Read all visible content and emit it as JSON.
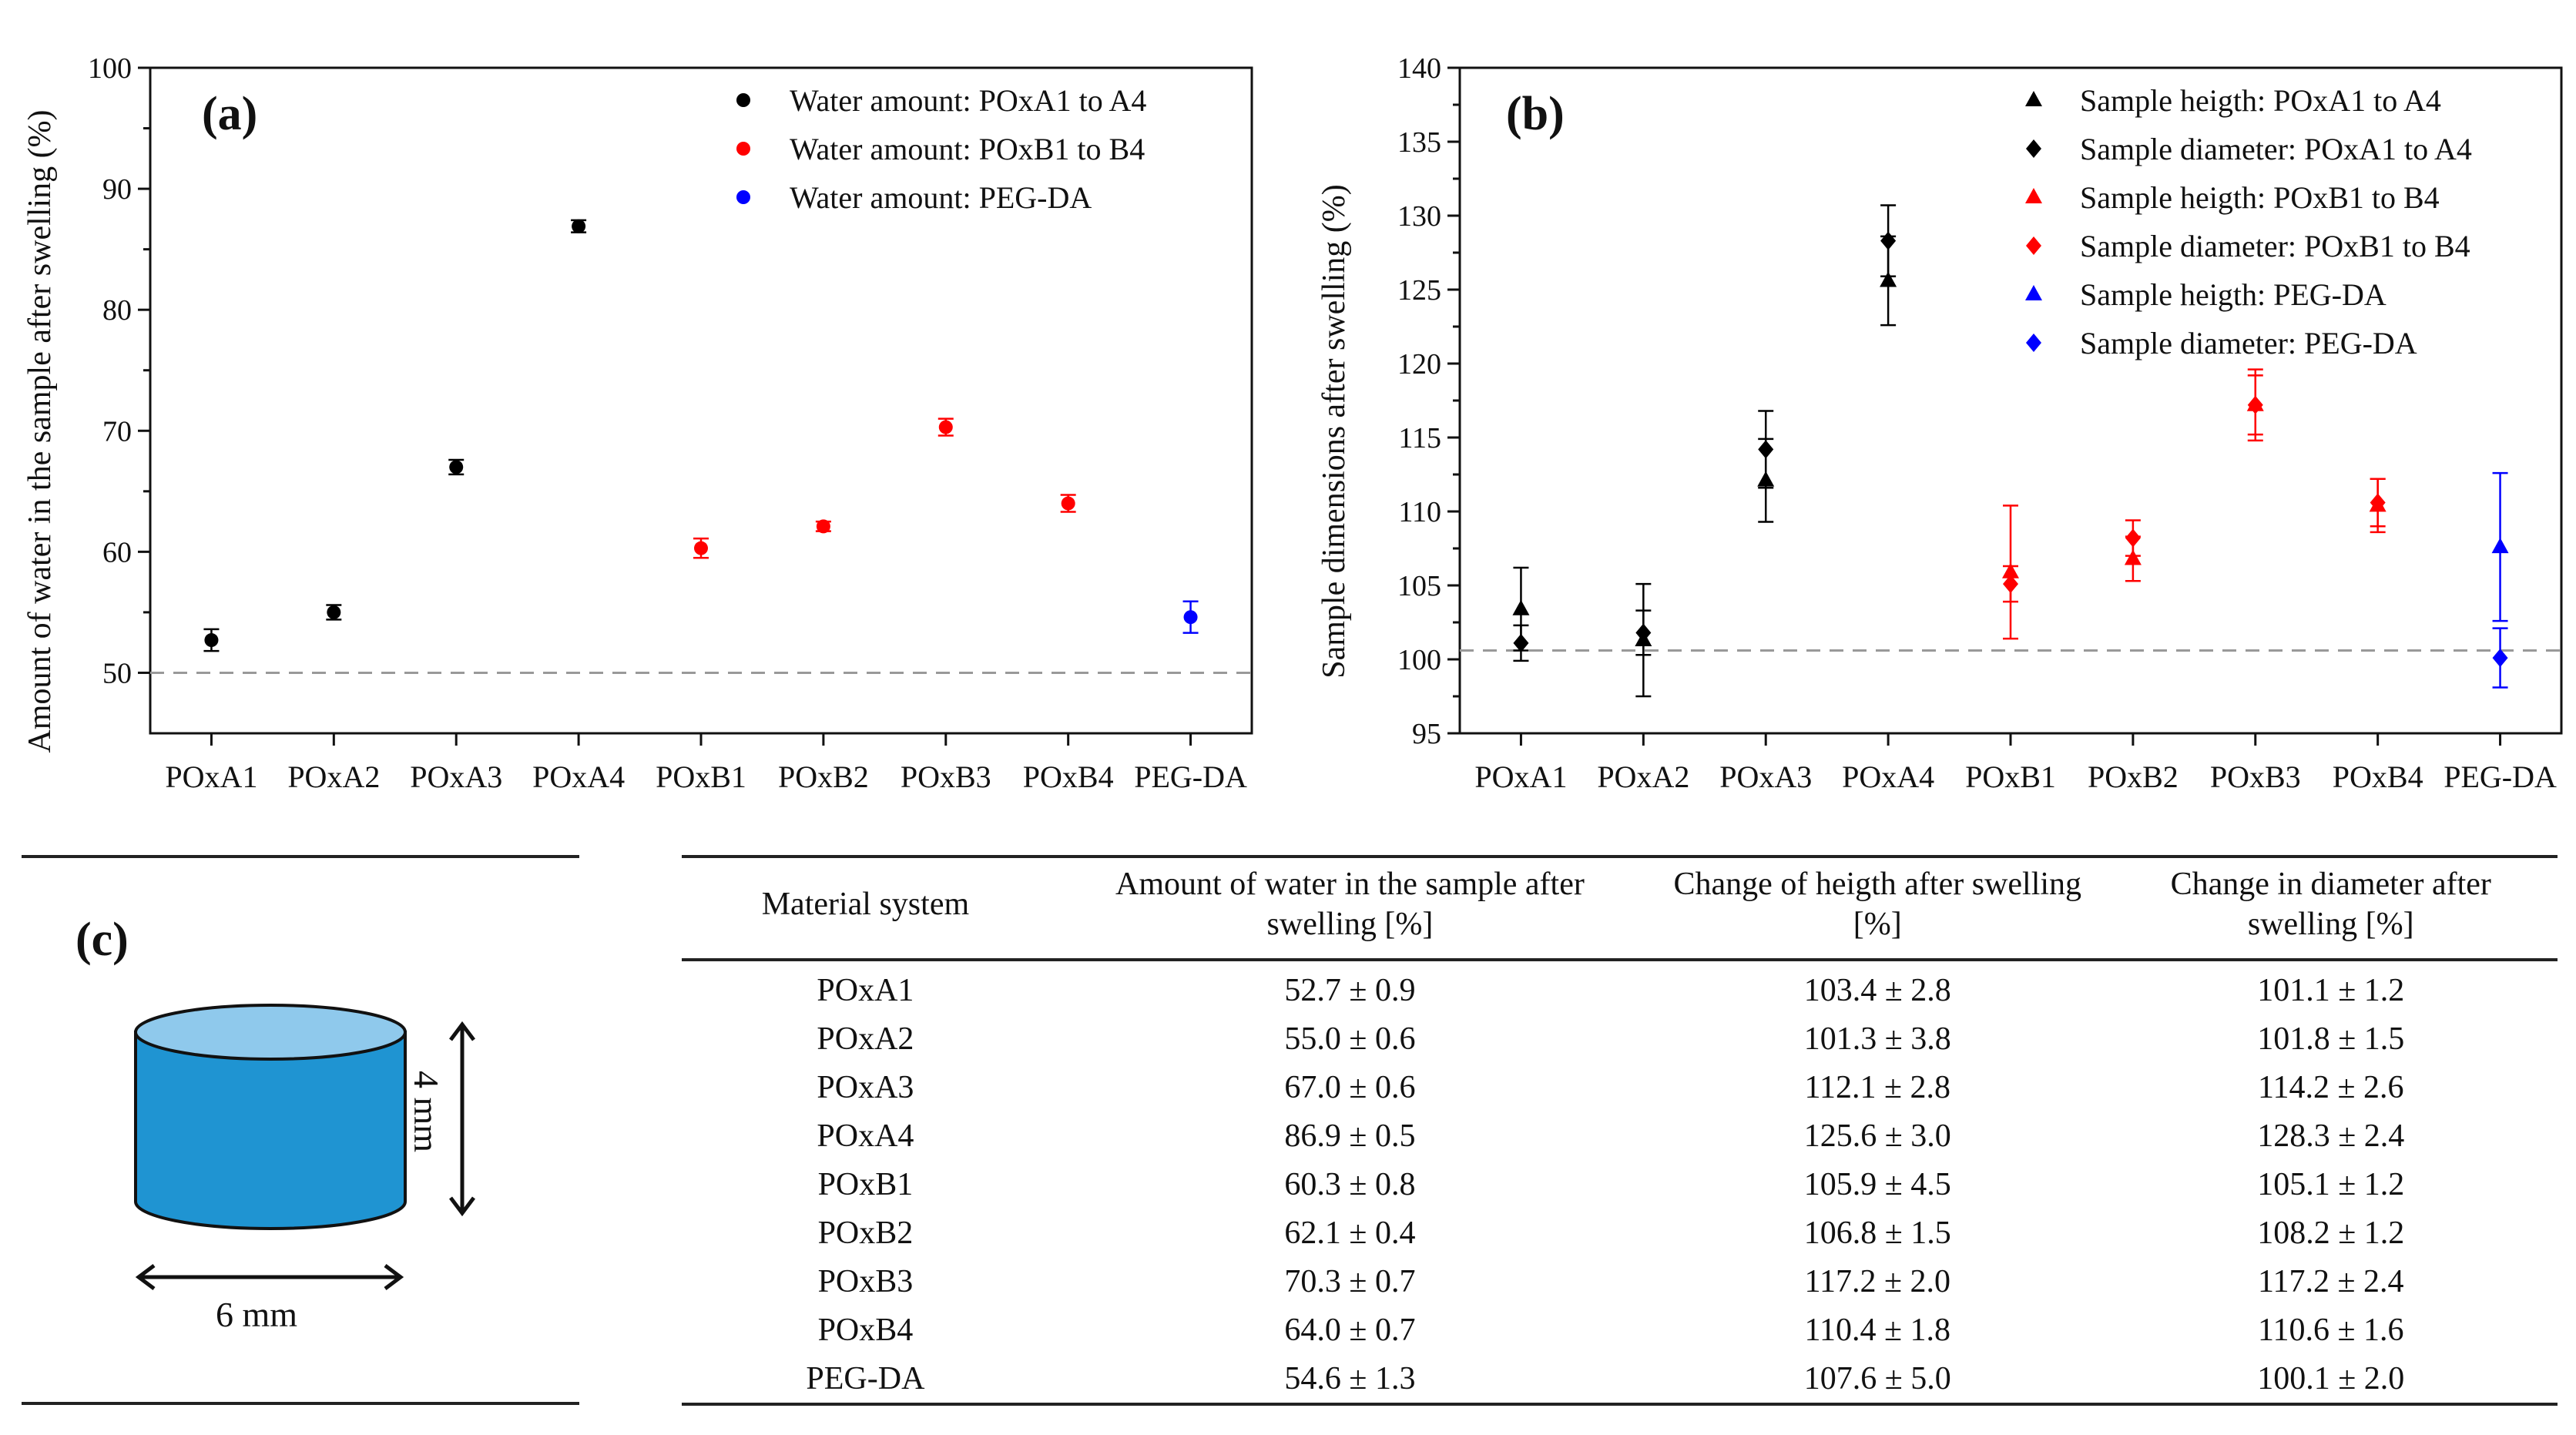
{
  "chart_data": [
    {
      "id": "a",
      "type": "scatter",
      "panel_label": "(a)",
      "title": "",
      "xlabel": "",
      "ylabel": "Amount of water in the sample after swelling (%)",
      "ylim": [
        45,
        100
      ],
      "yticks": [
        50,
        60,
        70,
        80,
        90,
        100
      ],
      "categories": [
        "POxA1",
        "POxA2",
        "POxA3",
        "POxA4",
        "POxB1",
        "POxB2",
        "POxB3",
        "POxB4",
        "PEG-DA"
      ],
      "reference_line": 50,
      "legend_position": "top-right",
      "series": [
        {
          "name": "Water amount: POxA1 to A4",
          "color": "#000000",
          "marker": "circle",
          "points": [
            {
              "x": "POxA1",
              "y": 52.7,
              "err": 0.9
            },
            {
              "x": "POxA2",
              "y": 55.0,
              "err": 0.6
            },
            {
              "x": "POxA3",
              "y": 67.0,
              "err": 0.6
            },
            {
              "x": "POxA4",
              "y": 86.9,
              "err": 0.5
            }
          ]
        },
        {
          "name": "Water amount: POxB1 to B4",
          "color": "#ff0000",
          "marker": "circle",
          "points": [
            {
              "x": "POxB1",
              "y": 60.3,
              "err": 0.8
            },
            {
              "x": "POxB2",
              "y": 62.1,
              "err": 0.4
            },
            {
              "x": "POxB3",
              "y": 70.3,
              "err": 0.7
            },
            {
              "x": "POxB4",
              "y": 64.0,
              "err": 0.7
            }
          ]
        },
        {
          "name": "Water amount: PEG-DA",
          "color": "#0000ff",
          "marker": "circle",
          "points": [
            {
              "x": "PEG-DA",
              "y": 54.6,
              "err": 1.3
            }
          ]
        }
      ]
    },
    {
      "id": "b",
      "type": "scatter",
      "panel_label": "(b)",
      "title": "",
      "xlabel": "",
      "ylabel": "Sample dimensions after swelling (%)",
      "ylim": [
        95,
        140
      ],
      "yticks": [
        95,
        100,
        105,
        110,
        115,
        120,
        125,
        130,
        135,
        140
      ],
      "categories": [
        "POxA1",
        "POxA2",
        "POxA3",
        "POxA4",
        "POxB1",
        "POxB2",
        "POxB3",
        "POxB4",
        "PEG-DA"
      ],
      "reference_line": 100.6,
      "legend_position": "top-right",
      "series": [
        {
          "name": "Sample heigth: POxA1 to A4",
          "color": "#000000",
          "marker": "triangle",
          "points": [
            {
              "x": "POxA1",
              "y": 103.4,
              "err": 2.8
            },
            {
              "x": "POxA2",
              "y": 101.3,
              "err": 3.8
            },
            {
              "x": "POxA3",
              "y": 112.1,
              "err": 2.8
            },
            {
              "x": "POxA4",
              "y": 125.6,
              "err": 3.0
            }
          ]
        },
        {
          "name": "Sample diameter: POxA1 to A4",
          "color": "#000000",
          "marker": "diamond",
          "points": [
            {
              "x": "POxA1",
              "y": 101.1,
              "err": 1.2
            },
            {
              "x": "POxA2",
              "y": 101.8,
              "err": 1.5
            },
            {
              "x": "POxA3",
              "y": 114.2,
              "err": 2.6
            },
            {
              "x": "POxA4",
              "y": 128.3,
              "err": 2.4
            }
          ]
        },
        {
          "name": "Sample heigth: POxB1 to B4",
          "color": "#ff0000",
          "marker": "triangle",
          "points": [
            {
              "x": "POxB1",
              "y": 105.9,
              "err": 4.5
            },
            {
              "x": "POxB2",
              "y": 106.8,
              "err": 1.5
            },
            {
              "x": "POxB3",
              "y": 117.2,
              "err": 2.0
            },
            {
              "x": "POxB4",
              "y": 110.4,
              "err": 1.8
            }
          ]
        },
        {
          "name": "Sample diameter: POxB1 to B4",
          "color": "#ff0000",
          "marker": "diamond",
          "points": [
            {
              "x": "POxB1",
              "y": 105.1,
              "err": 1.2
            },
            {
              "x": "POxB2",
              "y": 108.2,
              "err": 1.2
            },
            {
              "x": "POxB3",
              "y": 117.2,
              "err": 2.4
            },
            {
              "x": "POxB4",
              "y": 110.6,
              "err": 1.6
            }
          ]
        },
        {
          "name": "Sample heigth: PEG-DA",
          "color": "#0000ff",
          "marker": "triangle",
          "points": [
            {
              "x": "PEG-DA",
              "y": 107.6,
              "err": 5.0
            }
          ]
        },
        {
          "name": "Sample diameter: PEG-DA",
          "color": "#0000ff",
          "marker": "diamond",
          "points": [
            {
              "x": "PEG-DA",
              "y": 100.1,
              "err": 2.0
            }
          ]
        }
      ]
    }
  ],
  "panel_c": {
    "label": "(c)",
    "diameter": "6 mm",
    "height": "4 mm",
    "cylinder_color": "#1f94d2",
    "cylinder_top_color": "#8fc9ec"
  },
  "table": {
    "headers": [
      "Material system",
      "Amount of water in the sample after swelling [%]",
      "Change of heigth after swelling [%]",
      "Change in diameter after swelling [%]"
    ],
    "rows": [
      [
        "POxA1",
        "52.7 ± 0.9",
        "103.4 ± 2.8",
        "101.1 ± 1.2"
      ],
      [
        "POxA2",
        "55.0 ± 0.6",
        "101.3 ± 3.8",
        "101.8 ± 1.5"
      ],
      [
        "POxA3",
        "67.0 ± 0.6",
        "112.1 ± 2.8",
        "114.2 ± 2.6"
      ],
      [
        "POxA4",
        "86.9 ± 0.5",
        "125.6 ± 3.0",
        "128.3 ± 2.4"
      ],
      [
        "POxB1",
        "60.3 ± 0.8",
        "105.9 ± 4.5",
        "105.1 ± 1.2"
      ],
      [
        "POxB2",
        "62.1 ± 0.4",
        "106.8 ± 1.5",
        "108.2 ± 1.2"
      ],
      [
        "POxB3",
        "70.3 ± 0.7",
        "117.2 ± 2.0",
        "117.2 ± 2.4"
      ],
      [
        "POxB4",
        "64.0 ± 0.7",
        "110.4 ± 1.8",
        "110.6 ± 1.6"
      ],
      [
        "PEG-DA",
        "54.6 ± 1.3",
        "107.6 ± 5.0",
        "100.1 ± 2.0"
      ]
    ]
  }
}
